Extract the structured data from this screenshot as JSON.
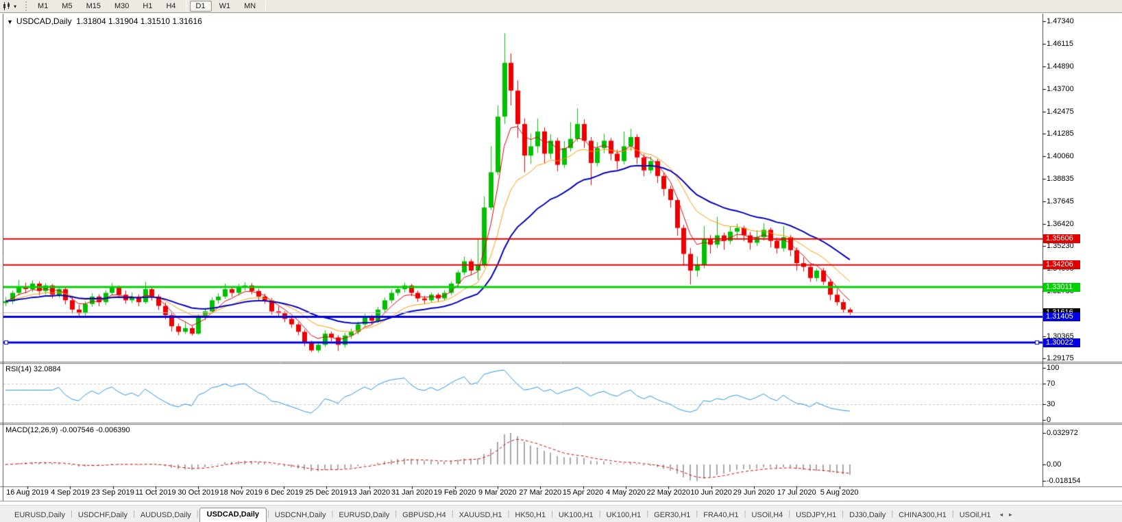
{
  "toolbar": {
    "timeframes": [
      "M1",
      "M5",
      "M15",
      "M30",
      "H1",
      "H4",
      "D1",
      "W1",
      "MN"
    ],
    "active_timeframe": "D1",
    "caret_icon": "▾"
  },
  "chart": {
    "title": {
      "collapse_icon": "▼",
      "symbol": "USDCAD,Daily",
      "ohlc": "1.31804 1.31904 1.31510 1.31616"
    },
    "indicators": {
      "rsi_label": "RSI(14) 32.0884",
      "macd_label": "MACD(12,26,9) -0.007546 -0.006390"
    }
  },
  "chart_data": {
    "type": "candlestick",
    "symbol": "USDCAD",
    "timeframe": "Daily",
    "x_labels": [
      "16 Aug 2019",
      "4 Sep 2019",
      "23 Sep 2019",
      "11 Oct 2019",
      "30 Oct 2019",
      "18 Nov 2019",
      "6 Dec 2019",
      "25 Dec 2019",
      "13 Jan 2020",
      "31 Jan 2020",
      "19 Feb 2020",
      "9 Mar 2020",
      "27 Mar 2020",
      "15 Apr 2020",
      "4 May 2020",
      "22 May 2020",
      "10 Jun 2020",
      "29 Jun 2020",
      "17 Jul 2020",
      "5 Aug 2020"
    ],
    "price_axis_ticks": [
      "1.47340",
      "1.46115",
      "1.44890",
      "1.43700",
      "1.42475",
      "1.41285",
      "1.40060",
      "1.38835",
      "1.37645",
      "1.36420",
      "1.35230",
      "1.34005",
      "1.32780",
      "1.30365",
      "1.29175"
    ],
    "rsi_axis_ticks": [
      "100",
      "70",
      "30",
      "0"
    ],
    "macd_axis_ticks": {
      "max": "0.032972",
      "zero": "0.00",
      "min": "-0.018154"
    },
    "levels": [
      {
        "price": 1.35606,
        "label": "1.35606",
        "color": "#e00000",
        "width": 2,
        "handles": false
      },
      {
        "price": 1.34206,
        "label": "1.34206",
        "color": "#e00000",
        "width": 2,
        "handles": false
      },
      {
        "price": 1.33011,
        "label": "1.33011",
        "color": "#00d200",
        "width": 3,
        "handles": false
      },
      {
        "price": 1.31405,
        "label": "1.31405",
        "color": "#0000e0",
        "width": 3,
        "handles": false
      },
      {
        "price": 1.30022,
        "label": "1.30022",
        "color": "#0000e0",
        "width": 3,
        "handles": true
      }
    ],
    "current_price": {
      "price": 1.31616,
      "label": "1.31616",
      "line_color": "#bdbdbd",
      "tag_color": "#000000"
    },
    "candle_colors": {
      "up": "#00c000",
      "down": "#ee0000"
    },
    "moving_averages": [
      {
        "name": "fast",
        "period": 5,
        "color": "#e00000",
        "width": 1
      },
      {
        "name": "medium",
        "period": 12,
        "color": "#ff9900",
        "width": 1
      },
      {
        "name": "slow",
        "period": 24,
        "color": "#0000bb",
        "width": 2
      }
    ],
    "rsi": {
      "period": 14,
      "value": 32.0884,
      "levels": [
        70,
        30
      ],
      "color": "#2a93e8",
      "level_color": "#c0c0c0"
    },
    "macd": {
      "fast": 12,
      "slow": 26,
      "signal": 9,
      "macd_value": -0.007546,
      "signal_value": -0.00639,
      "histogram_color": "#a8a8a8",
      "signal_color": "#e00000"
    },
    "candles": [
      [
        1.3215,
        1.3248,
        1.3198,
        1.3225
      ],
      [
        1.3225,
        1.3282,
        1.321,
        1.327
      ],
      [
        1.327,
        1.334,
        1.3255,
        1.3305
      ],
      [
        1.3305,
        1.3325,
        1.3268,
        1.329
      ],
      [
        1.329,
        1.3338,
        1.3275,
        1.332
      ],
      [
        1.332,
        1.3332,
        1.3258,
        1.328
      ],
      [
        1.328,
        1.3324,
        1.3262,
        1.331
      ],
      [
        1.331,
        1.3318,
        1.324,
        1.326
      ],
      [
        1.326,
        1.3305,
        1.3245,
        1.329
      ],
      [
        1.329,
        1.3302,
        1.3208,
        1.323
      ],
      [
        1.323,
        1.3252,
        1.3158,
        1.318
      ],
      [
        1.318,
        1.3205,
        1.3135,
        1.316
      ],
      [
        1.316,
        1.3225,
        1.3148,
        1.321
      ],
      [
        1.321,
        1.3268,
        1.3195,
        1.325
      ],
      [
        1.325,
        1.3262,
        1.3198,
        1.322
      ],
      [
        1.322,
        1.3285,
        1.3205,
        1.327
      ],
      [
        1.327,
        1.3322,
        1.3255,
        1.33
      ],
      [
        1.33,
        1.331,
        1.3242,
        1.326
      ],
      [
        1.326,
        1.3282,
        1.3212,
        1.323
      ],
      [
        1.323,
        1.3272,
        1.3215,
        1.325
      ],
      [
        1.325,
        1.3262,
        1.3198,
        1.322
      ],
      [
        1.322,
        1.333,
        1.321,
        1.329
      ],
      [
        1.329,
        1.3305,
        1.3228,
        1.325
      ],
      [
        1.325,
        1.3262,
        1.3178,
        1.32
      ],
      [
        1.32,
        1.3218,
        1.3128,
        1.315
      ],
      [
        1.315,
        1.3162,
        1.3062,
        1.309
      ],
      [
        1.309,
        1.3105,
        1.3042,
        1.306
      ],
      [
        1.306,
        1.3112,
        1.3048,
        1.308
      ],
      [
        1.308,
        1.3092,
        1.304,
        1.305
      ],
      [
        1.305,
        1.3155,
        1.3044,
        1.314
      ],
      [
        1.314,
        1.3188,
        1.3122,
        1.317
      ],
      [
        1.317,
        1.3245,
        1.3158,
        1.323
      ],
      [
        1.323,
        1.3268,
        1.3212,
        1.325
      ],
      [
        1.325,
        1.332,
        1.3238,
        1.329
      ],
      [
        1.329,
        1.3302,
        1.3248,
        1.327
      ],
      [
        1.327,
        1.3318,
        1.3255,
        1.33
      ],
      [
        1.33,
        1.3328,
        1.3282,
        1.331
      ],
      [
        1.331,
        1.3322,
        1.3262,
        1.328
      ],
      [
        1.328,
        1.3292,
        1.3232,
        1.325
      ],
      [
        1.325,
        1.3265,
        1.3212,
        1.323
      ],
      [
        1.323,
        1.3242,
        1.3152,
        1.317
      ],
      [
        1.317,
        1.3198,
        1.3145,
        1.316
      ],
      [
        1.316,
        1.3172,
        1.3112,
        1.313
      ],
      [
        1.313,
        1.3145,
        1.3082,
        1.31
      ],
      [
        1.31,
        1.3112,
        1.3042,
        1.306
      ],
      [
        1.306,
        1.3072,
        1.2982,
        1.3
      ],
      [
        1.3,
        1.3012,
        1.2952,
        1.296
      ],
      [
        1.296,
        1.3005,
        1.2948,
        1.299
      ],
      [
        1.299,
        1.3068,
        1.2978,
        1.305
      ],
      [
        1.305,
        1.3062,
        1.3008,
        1.303
      ],
      [
        1.303,
        1.3042,
        1.2957,
        1.299
      ],
      [
        1.299,
        1.3055,
        1.2975,
        1.304
      ],
      [
        1.304,
        1.3078,
        1.3022,
        1.306
      ],
      [
        1.306,
        1.3115,
        1.3045,
        1.31
      ],
      [
        1.31,
        1.3158,
        1.3088,
        1.314
      ],
      [
        1.314,
        1.3152,
        1.3098,
        1.312
      ],
      [
        1.312,
        1.3195,
        1.3108,
        1.318
      ],
      [
        1.318,
        1.3245,
        1.3165,
        1.323
      ],
      [
        1.323,
        1.3288,
        1.3215,
        1.327
      ],
      [
        1.327,
        1.3302,
        1.3255,
        1.329
      ],
      [
        1.329,
        1.3325,
        1.3272,
        1.331
      ],
      [
        1.331,
        1.3318,
        1.3252,
        1.327
      ],
      [
        1.327,
        1.3282,
        1.3222,
        1.324
      ],
      [
        1.324,
        1.3255,
        1.3212,
        1.323
      ],
      [
        1.323,
        1.3272,
        1.3218,
        1.326
      ],
      [
        1.326,
        1.327,
        1.3222,
        1.324
      ],
      [
        1.324,
        1.3285,
        1.3228,
        1.327
      ],
      [
        1.327,
        1.3332,
        1.3258,
        1.332
      ],
      [
        1.332,
        1.3392,
        1.3305,
        1.338
      ],
      [
        1.338,
        1.3465,
        1.3365,
        1.344
      ],
      [
        1.344,
        1.3452,
        1.3368,
        1.339
      ],
      [
        1.339,
        1.356,
        1.334,
        1.342
      ],
      [
        1.342,
        1.379,
        1.3405,
        1.373
      ],
      [
        1.373,
        1.406,
        1.3715,
        1.392
      ],
      [
        1.392,
        1.428,
        1.3905,
        1.422
      ],
      [
        1.422,
        1.4669,
        1.418,
        1.451
      ],
      [
        1.451,
        1.456,
        1.428,
        1.436
      ],
      [
        1.436,
        1.4415,
        1.4105,
        1.418
      ],
      [
        1.418,
        1.421,
        1.392,
        1.401
      ],
      [
        1.401,
        1.413,
        1.3965,
        1.406
      ],
      [
        1.406,
        1.421,
        1.4025,
        1.414
      ],
      [
        1.414,
        1.4162,
        1.397,
        1.402
      ],
      [
        1.402,
        1.4125,
        1.3992,
        1.409
      ],
      [
        1.409,
        1.4105,
        1.3925,
        1.396
      ],
      [
        1.396,
        1.4088,
        1.3942,
        1.405
      ],
      [
        1.405,
        1.419,
        1.4032,
        1.41
      ],
      [
        1.41,
        1.4265,
        1.4085,
        1.418
      ],
      [
        1.418,
        1.4205,
        1.4052,
        1.409
      ],
      [
        1.409,
        1.411,
        1.385,
        1.397
      ],
      [
        1.397,
        1.4082,
        1.3952,
        1.405
      ],
      [
        1.405,
        1.4128,
        1.4022,
        1.409
      ],
      [
        1.409,
        1.4105,
        1.3985,
        1.402
      ],
      [
        1.402,
        1.4042,
        1.3935,
        1.398
      ],
      [
        1.398,
        1.414,
        1.3962,
        1.406
      ],
      [
        1.406,
        1.4155,
        1.4035,
        1.411
      ],
      [
        1.411,
        1.4125,
        1.3965,
        1.4
      ],
      [
        1.4,
        1.4018,
        1.3898,
        1.393
      ],
      [
        1.393,
        1.4005,
        1.3912,
        1.398
      ],
      [
        1.398,
        1.3992,
        1.3862,
        1.39
      ],
      [
        1.39,
        1.3918,
        1.3792,
        1.383
      ],
      [
        1.383,
        1.3848,
        1.373,
        1.377
      ],
      [
        1.377,
        1.3782,
        1.3578,
        1.362
      ],
      [
        1.362,
        1.3638,
        1.342,
        1.348
      ],
      [
        1.348,
        1.3512,
        1.3315,
        1.339
      ],
      [
        1.339,
        1.3465,
        1.3358,
        1.342
      ],
      [
        1.342,
        1.363,
        1.3402,
        1.356
      ],
      [
        1.356,
        1.3582,
        1.3482,
        1.353
      ],
      [
        1.353,
        1.368,
        1.3512,
        1.358
      ],
      [
        1.358,
        1.3595,
        1.3502,
        1.355
      ],
      [
        1.355,
        1.3628,
        1.3532,
        1.36
      ],
      [
        1.36,
        1.3642,
        1.3565,
        1.362
      ],
      [
        1.362,
        1.3632,
        1.3548,
        1.358
      ],
      [
        1.358,
        1.3598,
        1.3502,
        1.354
      ],
      [
        1.354,
        1.3608,
        1.3522,
        1.357
      ],
      [
        1.357,
        1.3646,
        1.3552,
        1.361
      ],
      [
        1.361,
        1.3622,
        1.3515,
        1.355
      ],
      [
        1.355,
        1.3568,
        1.3482,
        1.351
      ],
      [
        1.351,
        1.363,
        1.3492,
        1.357
      ],
      [
        1.357,
        1.3582,
        1.3468,
        1.35
      ],
      [
        1.35,
        1.3515,
        1.339,
        1.343
      ],
      [
        1.343,
        1.3462,
        1.3385,
        1.341
      ],
      [
        1.341,
        1.3425,
        1.333,
        1.335
      ],
      [
        1.335,
        1.3402,
        1.3332,
        1.339
      ],
      [
        1.339,
        1.3405,
        1.3312,
        1.333
      ],
      [
        1.333,
        1.3345,
        1.323,
        1.326
      ],
      [
        1.326,
        1.3292,
        1.3202,
        1.322
      ],
      [
        1.322,
        1.3235,
        1.316,
        1.318
      ],
      [
        1.318,
        1.319,
        1.3151,
        1.3162
      ]
    ]
  },
  "tabs": {
    "items": [
      "EURUSD,Daily",
      "USDCHF,Daily",
      "AUDUSD,Daily",
      "USDCAD,Daily",
      "USDCNH,Daily",
      "EURUSD,Daily",
      "GBPUSD,H4",
      "XAUUSD,H1",
      "HK50,H1",
      "UK100,H1",
      "UK100,H1",
      "GER30,H1",
      "FRA40,H1",
      "USOil,H4",
      "USDJPY,H1",
      "DJ30,Daily",
      "CHINA300,H1",
      "USOil,H1"
    ],
    "active_index": 3,
    "nav": {
      "left": "◂",
      "right": "▸"
    }
  }
}
